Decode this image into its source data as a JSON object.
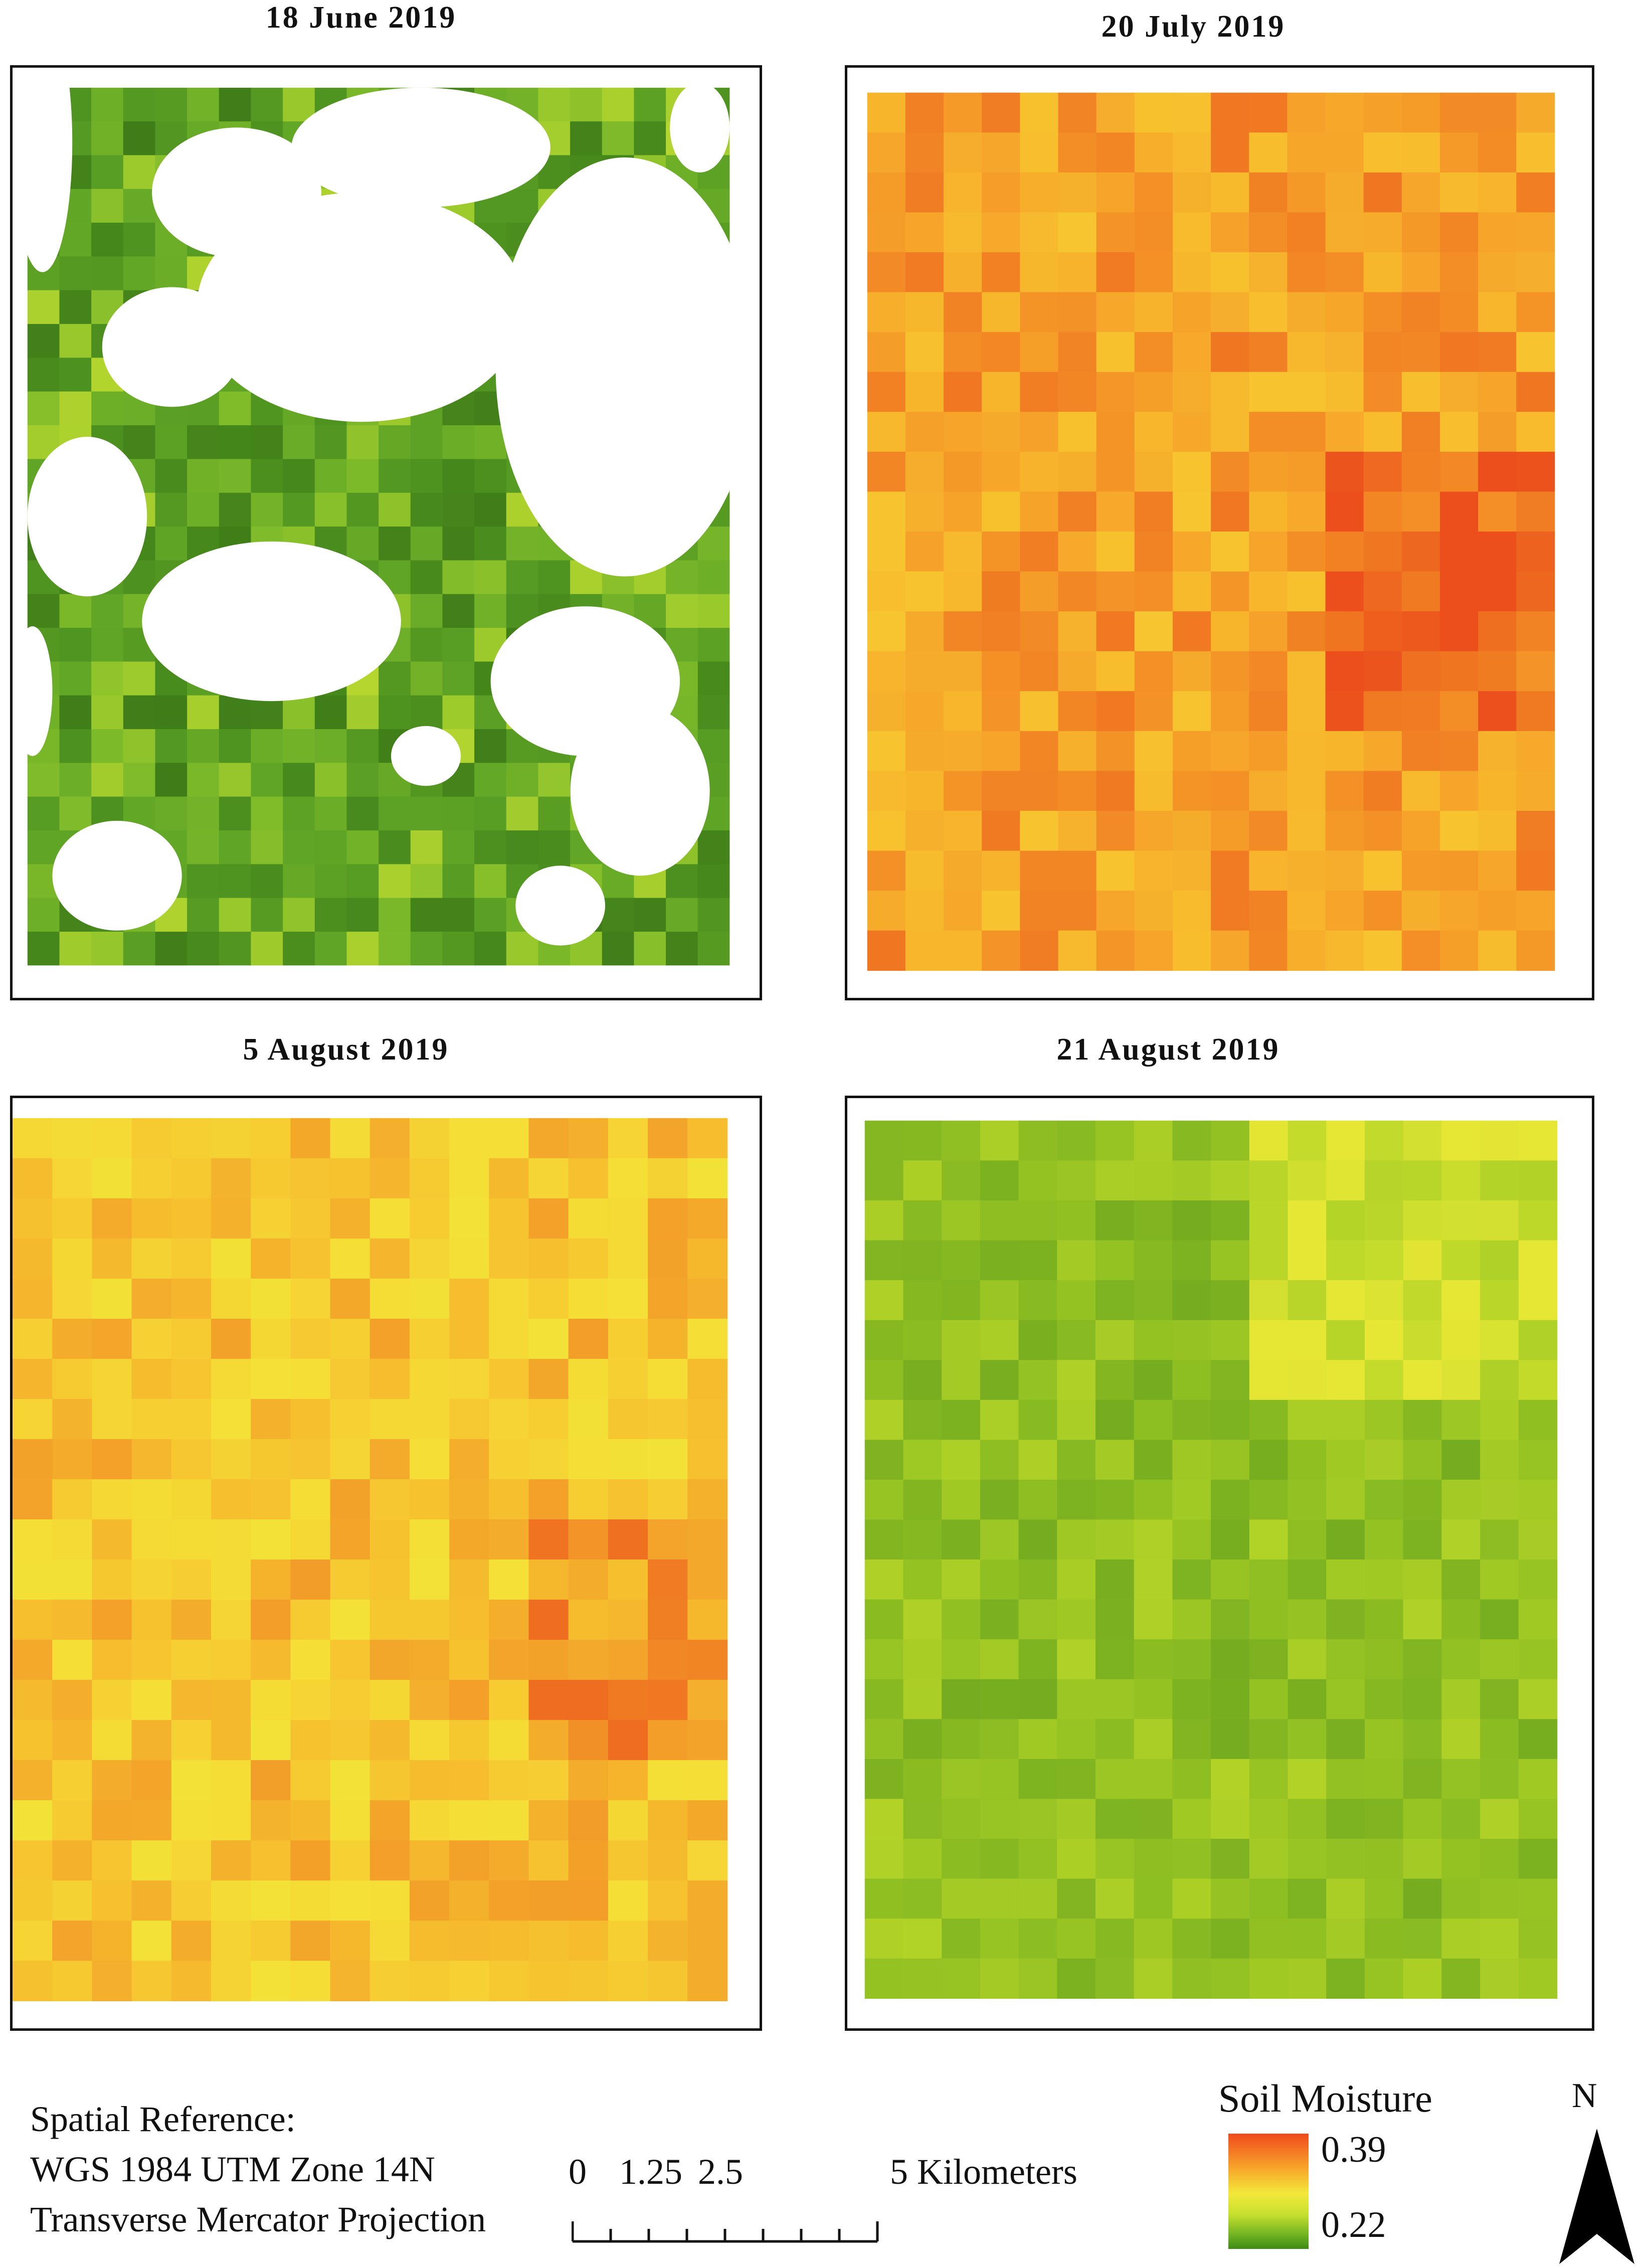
{
  "panels": [
    {
      "title": "18 June 2019",
      "scene": "cloudy-green"
    },
    {
      "title": "20 July 2019",
      "scene": "orange-wet"
    },
    {
      "title": "5 August 2019",
      "scene": "yellow-orange"
    },
    {
      "title": "21 August 2019",
      "scene": "green-yellow"
    }
  ],
  "legend": {
    "title": "Soil Moisture",
    "max_value": "0.39",
    "min_value": "0.22",
    "colors": {
      "high": "#f04a1c",
      "mid": "#f3e83a",
      "low": "#3d8a17"
    }
  },
  "spatial_reference": {
    "line1": "Spatial Reference:",
    "line2": "WGS 1984 UTM Zone 14N",
    "line3": "Transverse Mercator Projection"
  },
  "scale_bar": {
    "labels": [
      "0",
      "1.25",
      "2.5"
    ],
    "end_label": "5 Kilometers"
  },
  "north_arrow": {
    "label": "N",
    "icon": "north-arrow-icon"
  }
}
